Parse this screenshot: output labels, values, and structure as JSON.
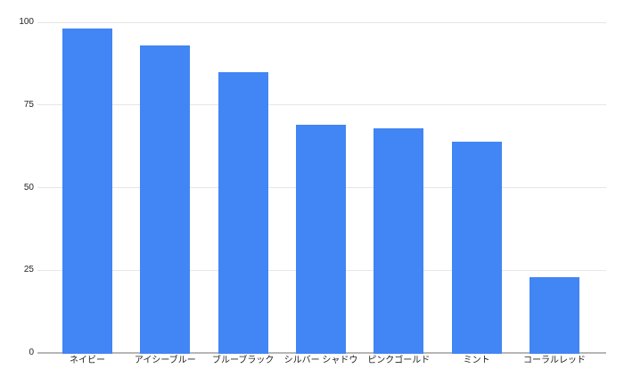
{
  "chart_data": {
    "type": "bar",
    "title": "",
    "xlabel": "",
    "ylabel": "",
    "categories": [
      "ネイビー",
      "アイシーブルー",
      "ブルーブラック",
      "シルバー シャドウ",
      "ピンクゴールド",
      "ミント",
      "コーラルレッド"
    ],
    "values": [
      98,
      93,
      85,
      69,
      68,
      64,
      23
    ],
    "ylim": [
      0,
      100
    ],
    "yticks": [
      0,
      25,
      50,
      75,
      100
    ],
    "grid": true,
    "legend": "none",
    "bar_color": "#4285f4",
    "gridline_color": "#e6e6e6",
    "axis_line_color": "#b7b7b7",
    "tick_label_color": "#1f1f1f",
    "category_label_color": "#1f1f1f",
    "background": "#ffffff"
  }
}
